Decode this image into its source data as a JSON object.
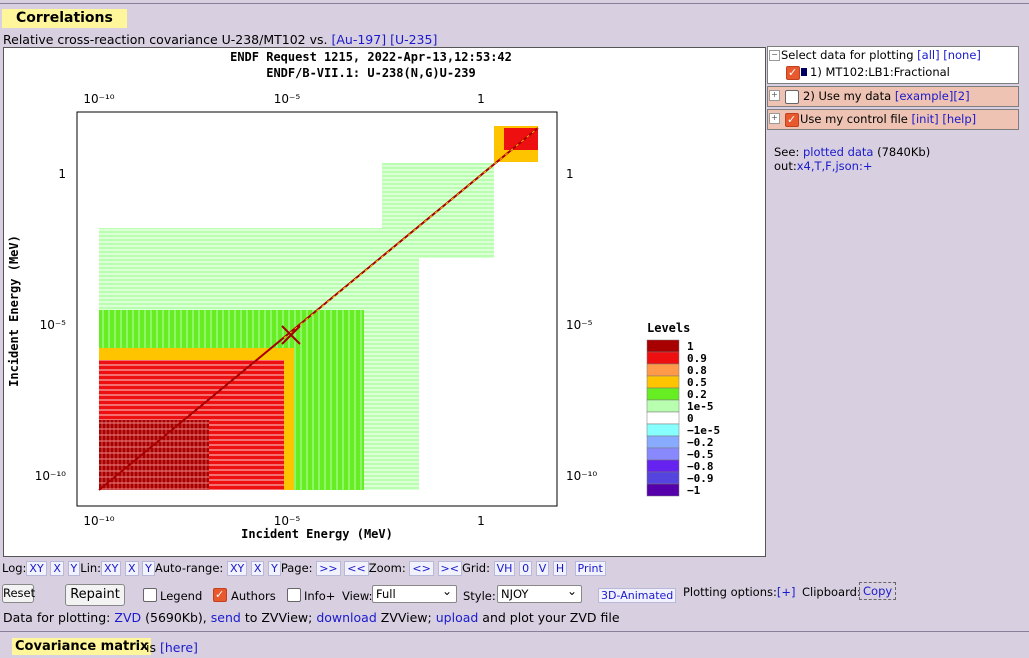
{
  "header": {
    "title": "Correlations",
    "subtitle_prefix": "Relative cross-reaction covariance U-238/MT102 vs.",
    "link_au": "[Au-197]",
    "link_u235": "[U-235]"
  },
  "plot": {
    "title1": "ENDF Request 1215, 2022-Apr-13,12:53:42",
    "title2": "ENDF/B-VII.1: U-238(N,G)U-239",
    "xlabel": "Incident Energy (MeV)",
    "ylabel": "Incident Energy (MeV)",
    "ticks": [
      "10⁻¹⁰",
      "10⁻⁵",
      "1"
    ],
    "legend_title": "Levels",
    "levels": [
      {
        "label": "1",
        "color": "#a80000"
      },
      {
        "label": "0.9",
        "color": "#ee1010"
      },
      {
        "label": "0.8",
        "color": "#ff9a4a"
      },
      {
        "label": "0.5",
        "color": "#ffc400"
      },
      {
        "label": "0.2",
        "color": "#66ee22"
      },
      {
        "label": "1e-5",
        "color": "#b8ffb0"
      },
      {
        "label": "0",
        "color": "#ffffff"
      },
      {
        "label": "−1e-5",
        "color": "#88ffff"
      },
      {
        "label": "−0.2",
        "color": "#88aaff"
      },
      {
        "label": "−0.5",
        "color": "#8888ff"
      },
      {
        "label": "−0.8",
        "color": "#6622ee"
      },
      {
        "label": "−0.9",
        "color": "#5544dd"
      },
      {
        "label": "−1",
        "color": "#5500aa"
      }
    ]
  },
  "side": {
    "select_label": "Select data for plotting",
    "all": "[all]",
    "none": "[none]",
    "item1": "1) MT102:LB1:Fractional",
    "mydata": "2) Use my data",
    "example": "[example]",
    "example_n": "[2]",
    "control": "Use my control file",
    "init": "[init]",
    "help": "[help]",
    "see": "See:",
    "plotted": "plotted data",
    "size": "(7840Kb)",
    "out": "out:",
    "fmt": "x4,T,F,json:+"
  },
  "controls": {
    "log": "Log:",
    "lin": "Lin:",
    "auto": "Auto-range:",
    "page": "Page:",
    "zoom": "Zoom:",
    "grid": "Grid:",
    "xy": "XY",
    "x": "X",
    "y": "Y",
    "next": ">>",
    "prev": "<<",
    "zin": "<>",
    "zout": "><",
    "vh": "VH",
    "zero": "0",
    "v": "V",
    "h": "H",
    "print": "Print",
    "reset": "Reset",
    "repaint": "Repaint",
    "legend": "Legend",
    "authors": "Authors",
    "info": "Info+",
    "view": "View:",
    "view_val": "Full",
    "style": "Style:",
    "style_val": "NJOY",
    "anim": "3D-Animated",
    "popts": "Plotting options:",
    "popts_link": "[+]",
    "clip": "Clipboard:",
    "copy": "Copy",
    "data_for": "Data for plotting:",
    "zvd": "ZVD",
    "zvd_size": "(5690Kb),",
    "send": "send",
    "to_zv": "to ZVView;",
    "download": "download",
    "zvview": "ZVView;",
    "upload": "upload",
    "plot_zvd": "and plot your ZVD file"
  },
  "footer": {
    "cov": "Covariance matrix",
    "is": "is",
    "here": "[here]"
  }
}
